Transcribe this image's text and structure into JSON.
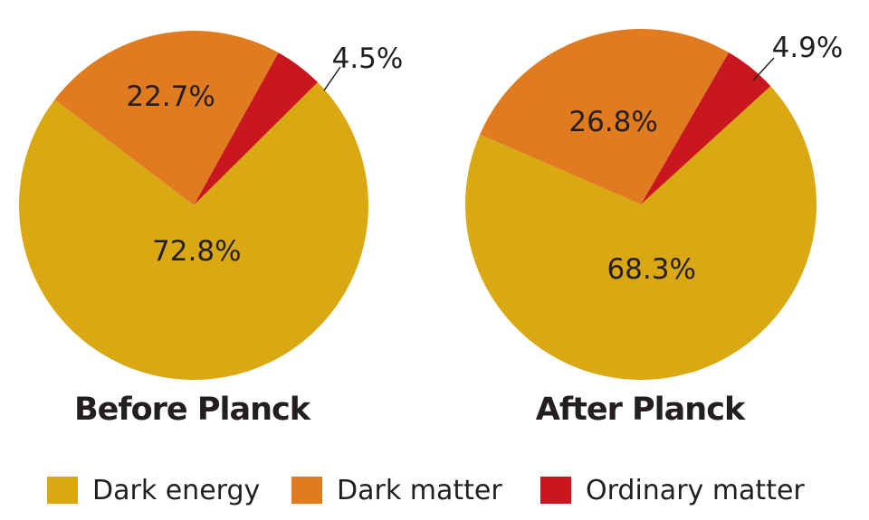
{
  "chart_data": [
    {
      "type": "pie",
      "title": "Before Planck",
      "categories": [
        "Dark energy",
        "Dark matter",
        "Ordinary matter"
      ],
      "values": [
        72.8,
        22.7,
        4.5
      ],
      "labels": [
        "72.8%",
        "22.7%",
        "4.5%"
      ],
      "colors": [
        "#DAA812",
        "#E07B20",
        "#C8171E"
      ]
    },
    {
      "type": "pie",
      "title": "After Planck",
      "categories": [
        "Dark energy",
        "Dark matter",
        "Ordinary matter"
      ],
      "values": [
        68.3,
        26.8,
        4.9
      ],
      "labels": [
        "68.3%",
        "26.8%",
        "4.9%"
      ],
      "colors": [
        "#DAA812",
        "#E07B20",
        "#C8171E"
      ]
    }
  ],
  "legend": {
    "placement": "bottom",
    "items": [
      {
        "label": "Dark energy",
        "color": "#DAA812"
      },
      {
        "label": "Dark matter",
        "color": "#E07B20"
      },
      {
        "label": "Ordinary matter",
        "color": "#C8171E"
      }
    ]
  }
}
